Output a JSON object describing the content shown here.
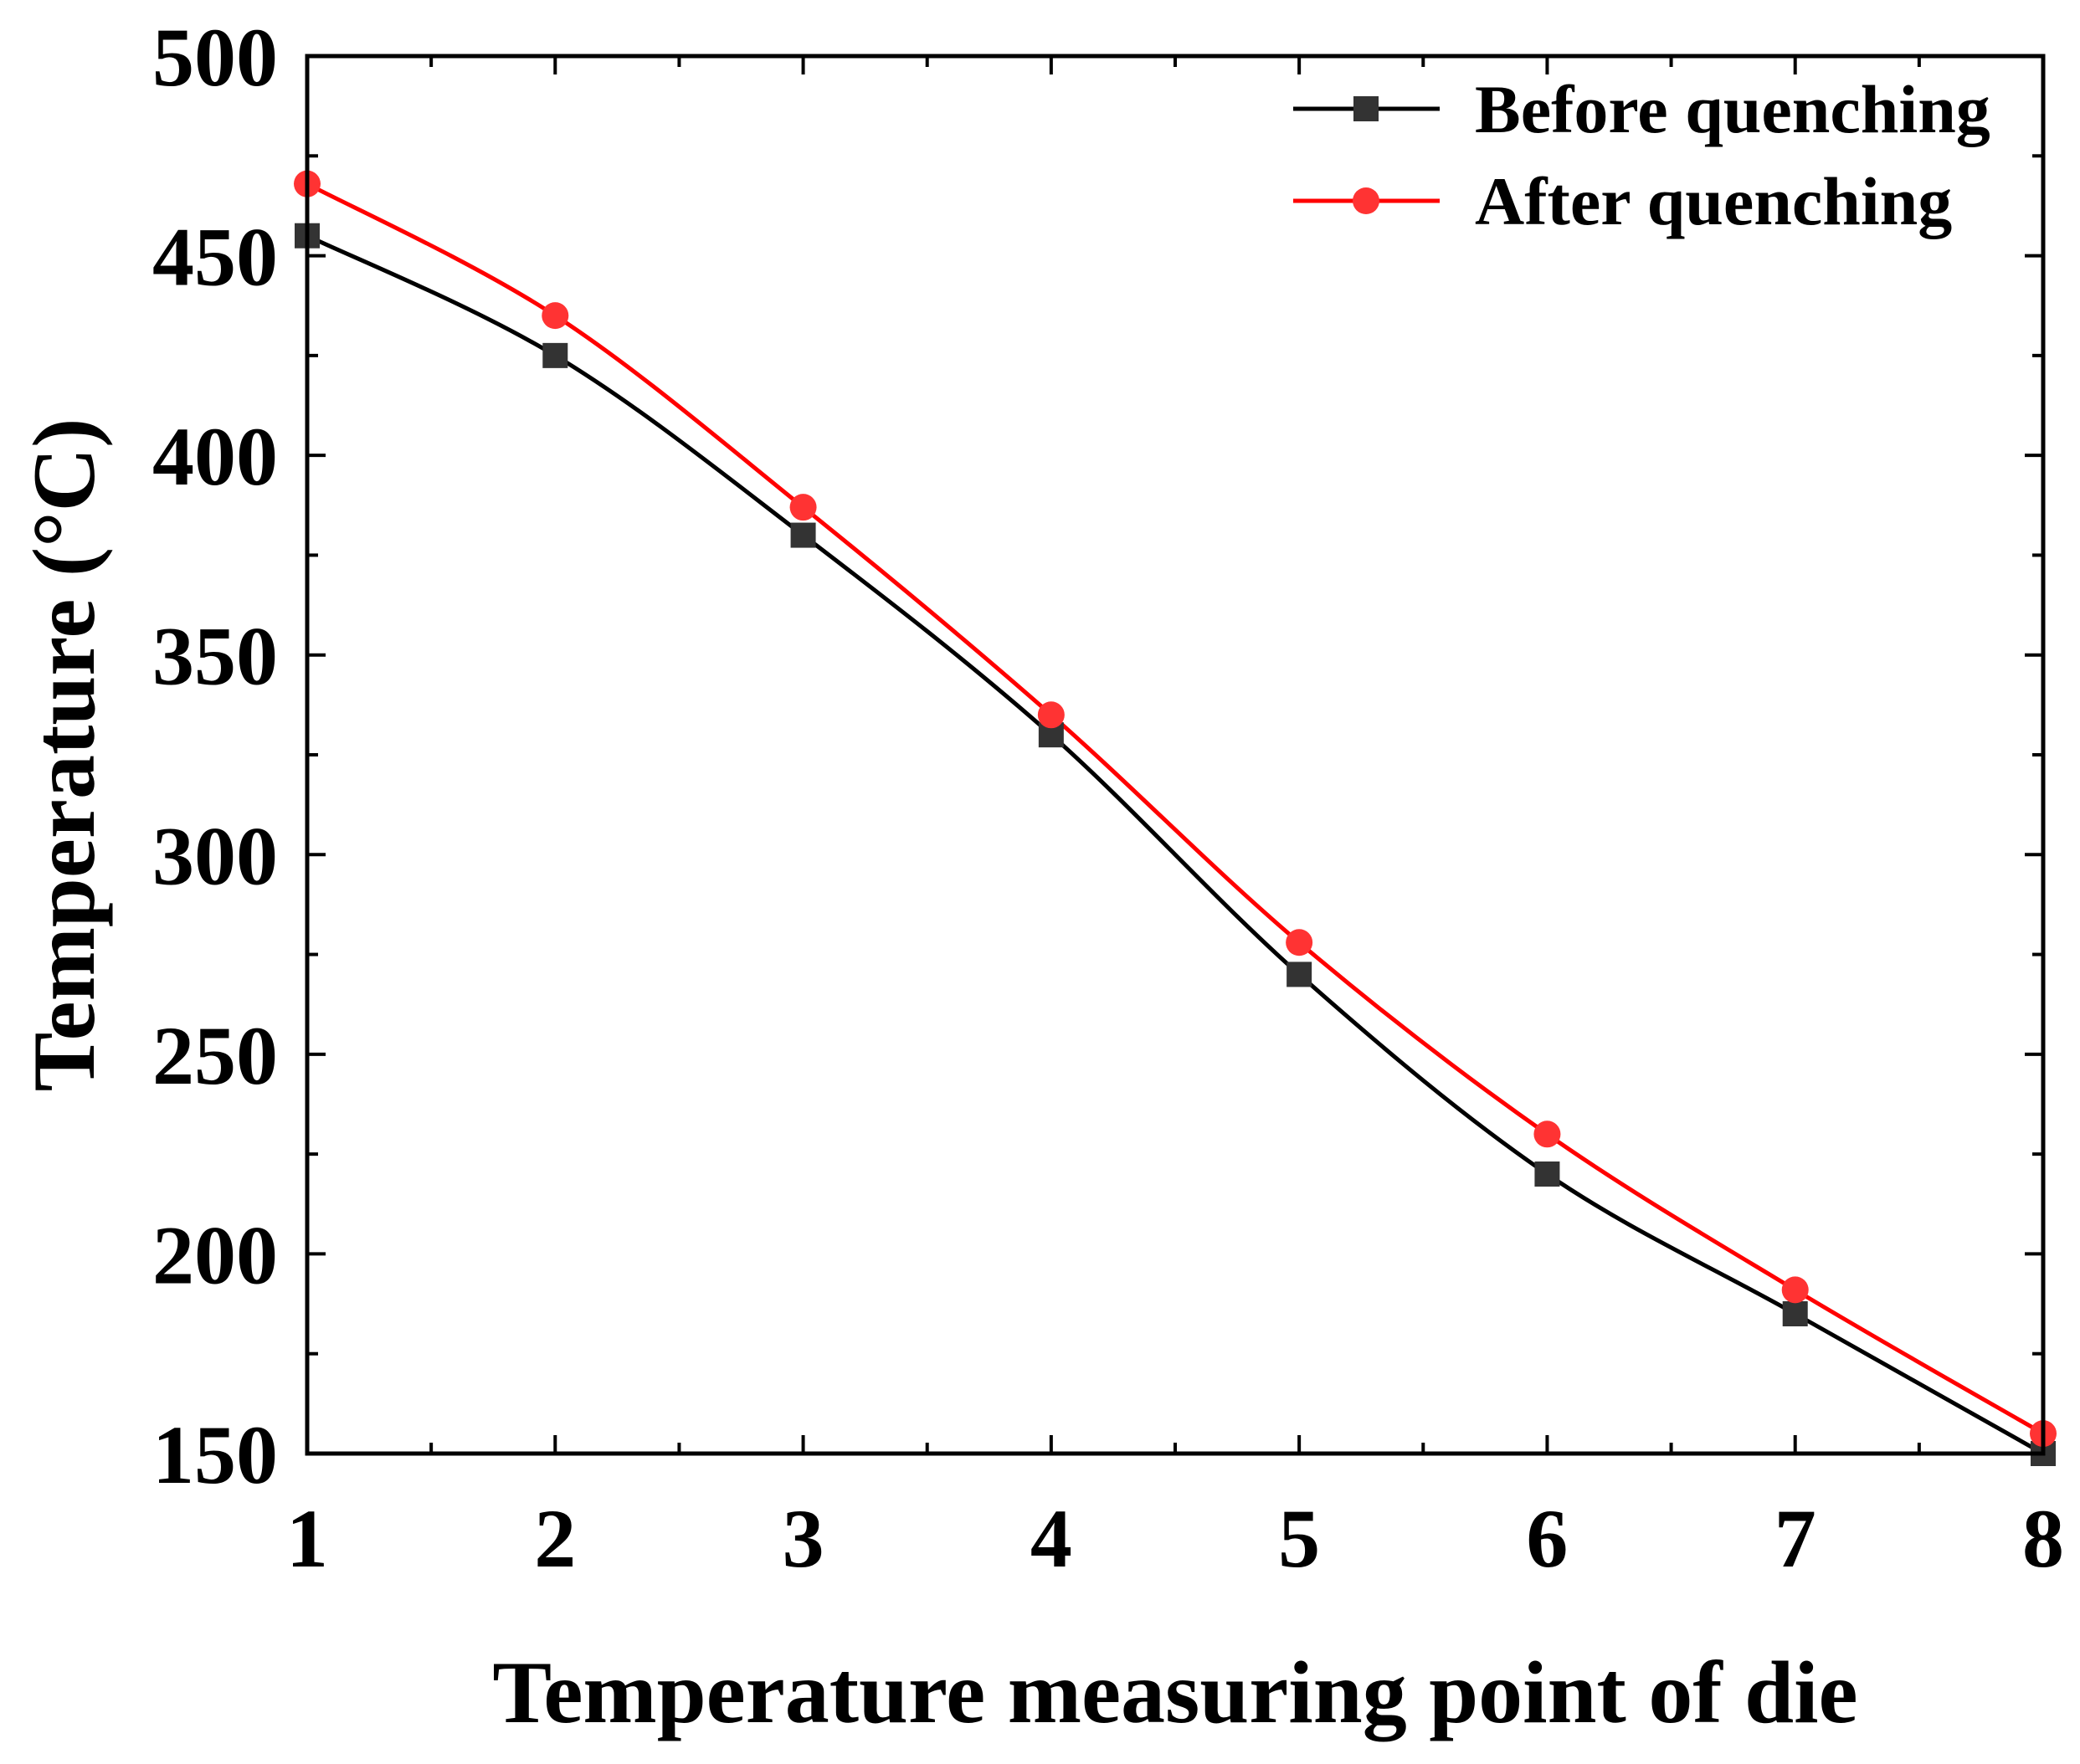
{
  "chart_data": {
    "type": "line",
    "title": "",
    "xlabel": "Temperature measuring point of die",
    "ylabel": "Temperature (°C)",
    "xlim": [
      1,
      8
    ],
    "ylim": [
      150,
      500
    ],
    "x": [
      1,
      2,
      3,
      4,
      5,
      6,
      7,
      8
    ],
    "xticks": [
      "1",
      "2",
      "3",
      "4",
      "5",
      "6",
      "7",
      "8"
    ],
    "yticks": [
      "150",
      "200",
      "250",
      "300",
      "350",
      "400",
      "450",
      "500"
    ],
    "grid": false,
    "legend_position": "top-right",
    "series": [
      {
        "name": "Before quenching",
        "color": "#000000",
        "marker": "square",
        "marker_color": "#333333",
        "values": [
          455,
          425,
          380,
          330,
          270,
          220,
          185,
          150
        ]
      },
      {
        "name": "After quenching",
        "color": "#ff0000",
        "marker": "circle",
        "marker_color": "#ff3333",
        "values": [
          468,
          435,
          387,
          335,
          278,
          230,
          191,
          155
        ]
      }
    ]
  }
}
